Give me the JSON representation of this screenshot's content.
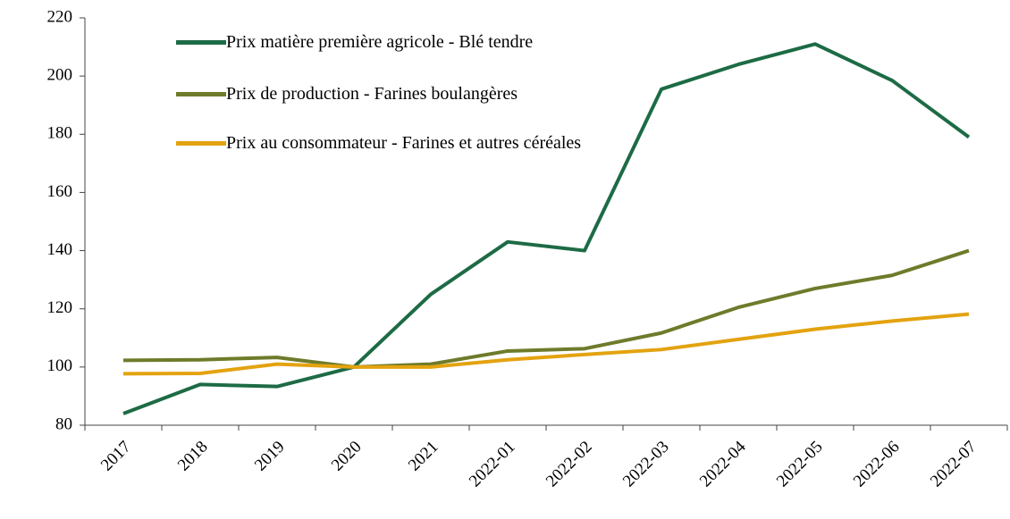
{
  "chart_data": {
    "type": "line",
    "categories": [
      "2017",
      "2018",
      "2019",
      "2020",
      "2021",
      "2022-01",
      "2022-02",
      "2022-03",
      "2022-04",
      "2022-05",
      "2022-06",
      "2022-07"
    ],
    "series": [
      {
        "name": "Prix matière première agricole - Blé tendre",
        "color": "#1d6b45",
        "values": [
          84,
          94,
          93.3,
          100,
          125,
          143,
          140,
          195.5,
          204,
          211,
          198.5,
          179
        ]
      },
      {
        "name": "Prix de production - Farines boulangères",
        "color": "#6e7b2a",
        "values": [
          102.3,
          102.5,
          103.3,
          100,
          101,
          105.5,
          106.3,
          111.7,
          120.5,
          127,
          131.5,
          140
        ]
      },
      {
        "name": "Prix au consommateur - Farines et autres céréales",
        "color": "#e3a310",
        "values": [
          97.7,
          97.8,
          101,
          100,
          100,
          102.5,
          104.3,
          106,
          109.5,
          113,
          115.8,
          118.2
        ]
      }
    ],
    "ylim": [
      80,
      220
    ],
    "yticks": [
      80,
      100,
      120,
      140,
      160,
      180,
      200,
      220
    ],
    "legend": "upper left"
  }
}
